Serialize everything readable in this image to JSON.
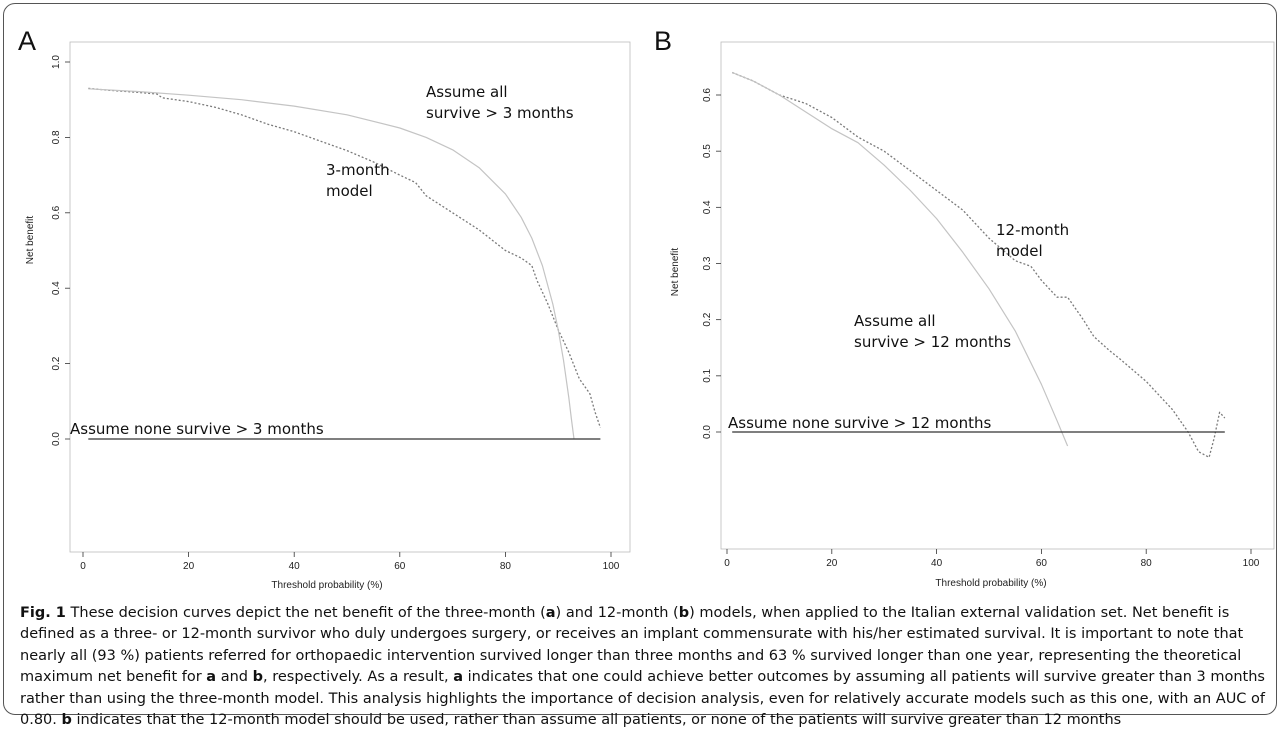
{
  "chart_data": [
    {
      "panel": "A",
      "type": "line",
      "xlabel": "Threshold probability (%)",
      "ylabel": "Net benefit",
      "xlim": [
        0,
        100
      ],
      "ylim": [
        0,
        1.0
      ],
      "xticks": [
        "0",
        "20",
        "40",
        "60",
        "80",
        "100"
      ],
      "yticks": [
        "0.0",
        "0.2",
        "0.4",
        "0.6",
        "0.8",
        "1.0"
      ],
      "series": [
        {
          "name": "3-month model",
          "style": "dotted",
          "color": "#7a7a7a",
          "x": [
            1,
            5,
            10,
            14,
            15,
            20,
            25,
            30,
            35,
            40,
            45,
            50,
            55,
            60,
            63,
            65,
            70,
            75,
            80,
            83,
            85,
            86,
            88,
            90,
            92,
            94,
            96,
            97,
            98
          ],
          "y": [
            0.93,
            0.925,
            0.92,
            0.915,
            0.905,
            0.895,
            0.88,
            0.86,
            0.835,
            0.815,
            0.79,
            0.765,
            0.735,
            0.7,
            0.68,
            0.645,
            0.6,
            0.555,
            0.5,
            0.48,
            0.46,
            0.42,
            0.36,
            0.29,
            0.23,
            0.16,
            0.12,
            0.07,
            0.03
          ]
        },
        {
          "name": "Assume all survive > 3 months",
          "style": "solid",
          "color": "#c4c4c4",
          "x": [
            1,
            10,
            20,
            30,
            40,
            50,
            60,
            65,
            70,
            75,
            80,
            83,
            85,
            87,
            89,
            90,
            91,
            92,
            92.5,
            93
          ],
          "y": [
            0.929,
            0.922,
            0.912,
            0.9,
            0.883,
            0.86,
            0.825,
            0.8,
            0.767,
            0.72,
            0.65,
            0.588,
            0.533,
            0.46,
            0.357,
            0.29,
            0.209,
            0.11,
            0.053,
            0.0
          ]
        },
        {
          "name": "Assume none survive > 3 months",
          "style": "solid",
          "color": "#333333",
          "x": [
            1,
            98
          ],
          "y": [
            0,
            0
          ]
        }
      ],
      "annotations": [
        {
          "lines": [
            "Assume all",
            "survive > 3 months"
          ]
        },
        {
          "lines": [
            "3-month",
            "model"
          ]
        },
        {
          "lines": [
            "Assume none survive > 3 months"
          ]
        }
      ]
    },
    {
      "panel": "B",
      "type": "line",
      "xlabel": "Threshold probability (%)",
      "ylabel": "Net benefit",
      "xlim": [
        0,
        100
      ],
      "ylim": [
        -0.05,
        0.65
      ],
      "xticks": [
        "0",
        "20",
        "40",
        "60",
        "80",
        "100"
      ],
      "yticks": [
        "0.0",
        "0.1",
        "0.2",
        "0.3",
        "0.4",
        "0.5",
        "0.6"
      ],
      "series": [
        {
          "name": "12-month model",
          "style": "dotted",
          "color": "#7a7a7a",
          "x": [
            1,
            5,
            10,
            15,
            20,
            25,
            30,
            35,
            40,
            45,
            50,
            55,
            58,
            60,
            63,
            65,
            68,
            70,
            73,
            75,
            80,
            83,
            85,
            88,
            90,
            92,
            93,
            94,
            95
          ],
          "y": [
            0.64,
            0.625,
            0.6,
            0.585,
            0.56,
            0.525,
            0.5,
            0.465,
            0.43,
            0.395,
            0.345,
            0.305,
            0.295,
            0.27,
            0.24,
            0.24,
            0.2,
            0.17,
            0.145,
            0.13,
            0.09,
            0.06,
            0.04,
            0.0,
            -0.035,
            -0.045,
            -0.01,
            0.035,
            0.025
          ]
        },
        {
          "name": "Assume all survive > 12 months",
          "style": "solid",
          "color": "#c4c4c4",
          "x": [
            1,
            5,
            10,
            15,
            20,
            25,
            30,
            35,
            40,
            45,
            50,
            55,
            60,
            63,
            65
          ],
          "y": [
            0.64,
            0.625,
            0.6,
            0.57,
            0.54,
            0.515,
            0.475,
            0.43,
            0.38,
            0.32,
            0.255,
            0.18,
            0.085,
            0.02,
            -0.025
          ]
        },
        {
          "name": "Assume none survive > 12 months",
          "style": "solid",
          "color": "#333333",
          "x": [
            1,
            95
          ],
          "y": [
            0,
            0
          ]
        }
      ],
      "annotations": [
        {
          "lines": [
            "12-month",
            "model"
          ]
        },
        {
          "lines": [
            "Assume all",
            "survive > 12 months"
          ]
        },
        {
          "lines": [
            "Assume none survive > 12 months"
          ]
        }
      ]
    }
  ],
  "caption": {
    "fig_label": "Fig. 1",
    "segments": [
      {
        "t": " These decision curves depict the net benefit of the three-month ("
      },
      {
        "t": "a",
        "b": true
      },
      {
        "t": ") and 12-month ("
      },
      {
        "t": "b",
        "b": true
      },
      {
        "t": ") models, when applied to the Italian external validation set. Net benefit is defined as a three- or 12-month survivor who duly undergoes surgery, or receives an implant commensurate with his/her estimated survival. It is important to note that nearly all (93 %) patients referred for orthopaedic intervention survived longer than three months and 63 % survived longer than one year, representing the theoretical maximum net benefit for "
      },
      {
        "t": "a",
        "b": true
      },
      {
        "t": " and "
      },
      {
        "t": "b",
        "b": true
      },
      {
        "t": ", respectively. As a result, "
      },
      {
        "t": "a",
        "b": true
      },
      {
        "t": " indicates that one could achieve better outcomes by assuming all patients will survive greater than 3 months rather than using the three-month model. This analysis highlights the importance of decision analysis, even for relatively accurate models such as this one, with an AUC of 0.80. "
      },
      {
        "t": "b",
        "b": true
      },
      {
        "t": " indicates that the 12-month model should be used, rather than assume all patients, or none of the patients will survive greater than 12 months"
      }
    ]
  }
}
